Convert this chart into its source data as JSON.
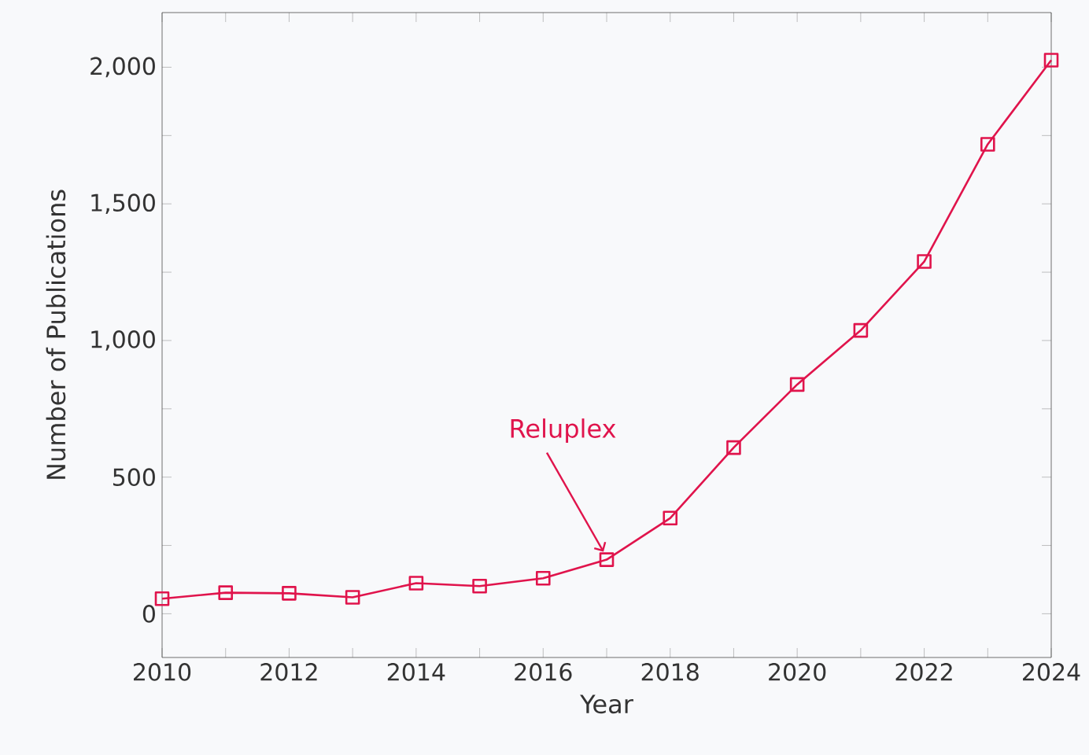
{
  "chart_data": {
    "type": "line",
    "xlabel": "Year",
    "ylabel": "Number of Publications",
    "x": [
      2010,
      2011,
      2012,
      2013,
      2014,
      2015,
      2016,
      2017,
      2018,
      2019,
      2020,
      2021,
      2022,
      2023,
      2024
    ],
    "series": [
      {
        "color": "#e0144c",
        "values": [
          55,
          77,
          75,
          60,
          112,
          101,
          130,
          198,
          350,
          608,
          839,
          1037,
          1289,
          1718,
          2026
        ]
      }
    ],
    "marker": "square",
    "line_style": "solid",
    "xlim": [
      2010,
      2024
    ],
    "ylim": [
      -160,
      2200
    ],
    "xticks": [
      2010,
      {
        "value": 2011,
        "label": null
      },
      2012,
      {
        "value": 2013,
        "label": null
      },
      2014,
      {
        "value": 2015,
        "label": null
      },
      2016,
      {
        "value": 2017,
        "label": null
      },
      2018,
      {
        "value": 2019,
        "label": null
      },
      2020,
      {
        "value": 2021,
        "label": null
      },
      2022,
      {
        "value": 2023,
        "label": null
      },
      2024
    ],
    "yticks": [
      0,
      {
        "value": 250,
        "label": null
      },
      500,
      {
        "value": 750,
        "label": null
      },
      {
        "value": 1000,
        "label": "1,000"
      },
      {
        "value": 1250,
        "label": null
      },
      {
        "value": 1500,
        "label": "1,500"
      },
      {
        "value": 1750,
        "label": null
      },
      {
        "value": 2000,
        "label": "2,000"
      }
    ],
    "annotations": [
      {
        "text": "Reluplex",
        "x": 2017,
        "y": 198
      }
    ]
  }
}
